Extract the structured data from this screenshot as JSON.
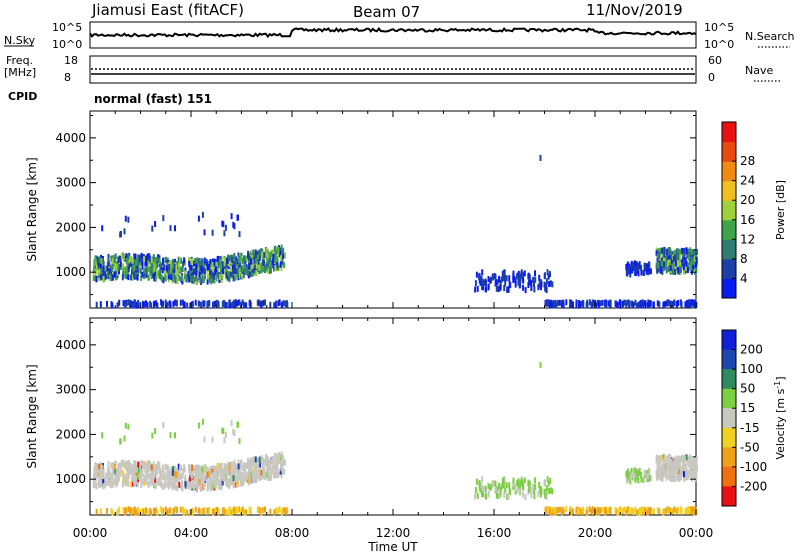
{
  "header": {
    "station": "Jiamusi East (fitACF)",
    "beam": "Beam 07",
    "date": "11/Nov/2019"
  },
  "noise_panel": {
    "left_label": "N.Sky",
    "right_label": "N.Search",
    "left_ticks": [
      "10^5",
      "10^0"
    ],
    "right_ticks": [
      "10^5",
      "10^0"
    ]
  },
  "freq_panel": {
    "left_label_1": "Freq.",
    "left_label_2": "[MHz]",
    "right_label": "Nave",
    "left_ticks": [
      "18",
      "8"
    ],
    "right_ticks": [
      "60",
      "0"
    ]
  },
  "cpid": {
    "label": "CPID",
    "mode": "normal (fast) 151"
  },
  "chart_data": [
    {
      "type": "heatmap",
      "title": "",
      "xlabel": "Time UT",
      "ylabel": "Slant Range [km]",
      "x_tick_labels": [
        "00:00",
        "04:00",
        "08:00",
        "12:00",
        "16:00",
        "20:00",
        "00:00"
      ],
      "y_tick_labels": [
        "1000",
        "2000",
        "3000",
        "4000"
      ],
      "ylim": [
        200,
        4600
      ],
      "colorbar": {
        "label": "Power [dB]",
        "ticks": [
          "4",
          "8",
          "12",
          "16",
          "20",
          "24",
          "28"
        ],
        "colors": [
          "#0b1cf0",
          "#1c3fa8",
          "#2f7d6e",
          "#3fa34a",
          "#9fd23a",
          "#f0c020",
          "#f08a10",
          "#e84a10",
          "#e81010"
        ]
      }
    },
    {
      "type": "heatmap",
      "title": "",
      "xlabel": "Time UT",
      "ylabel": "Slant Range [km]",
      "x_tick_labels": [
        "00:00",
        "04:00",
        "08:00",
        "12:00",
        "16:00",
        "20:00",
        "00:00"
      ],
      "y_tick_labels": [
        "1000",
        "2000",
        "3000",
        "4000"
      ],
      "ylim": [
        200,
        4600
      ],
      "colorbar": {
        "label": "Velocity [m s",
        "label_sup": "-1",
        "label_end": "]",
        "ticks": [
          "200",
          "100",
          "50",
          "15",
          "-15",
          "-50",
          "-100",
          "-200"
        ],
        "colors": [
          "#1020d8",
          "#1c48b0",
          "#2f8a60",
          "#7ad040",
          "#c8c8c0",
          "#f0d020",
          "#f0a018",
          "#f07010",
          "#e81010"
        ]
      }
    }
  ]
}
